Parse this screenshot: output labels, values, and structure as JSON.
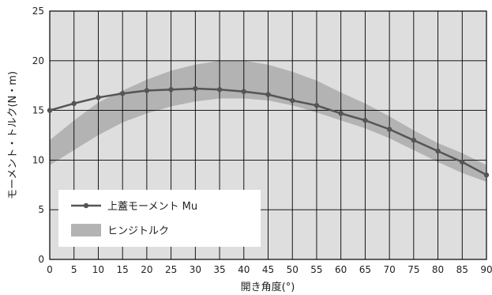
{
  "chart_data": {
    "type": "line",
    "xlabel": "開き角度(°)",
    "ylabel": "モーメント・トルク(N・m)",
    "xlim": [
      0,
      90
    ],
    "ylim": [
      0,
      25
    ],
    "x_ticks": [
      "0",
      "5",
      "10",
      "15",
      "20",
      "25",
      "30",
      "35",
      "40",
      "45",
      "50",
      "55",
      "60",
      "65",
      "70",
      "75",
      "80",
      "85",
      "90"
    ],
    "y_ticks": [
      "0",
      "5",
      "10",
      "15",
      "20",
      "25"
    ],
    "grid": true,
    "legend_position": "bottom-left",
    "series": [
      {
        "name": "上蓋モーメント Mu",
        "type": "line",
        "color": "#555555",
        "x": [
          0,
          5,
          10,
          15,
          20,
          25,
          30,
          35,
          40,
          45,
          50,
          55,
          60,
          65,
          70,
          75,
          80,
          85,
          90
        ],
        "y": [
          15.0,
          15.7,
          16.3,
          16.7,
          17.0,
          17.1,
          17.2,
          17.1,
          16.9,
          16.6,
          16.0,
          15.5,
          14.7,
          14.0,
          13.1,
          12.0,
          10.9,
          9.8,
          8.5
        ]
      },
      {
        "name": "ヒンジトルク",
        "type": "band",
        "color": "#b3b3b3",
        "x": [
          0,
          5,
          10,
          15,
          20,
          25,
          30,
          35,
          40,
          45,
          50,
          55,
          60,
          65,
          70,
          75,
          80,
          85,
          90
        ],
        "upper": [
          12.0,
          14.0,
          15.8,
          17.0,
          18.1,
          19.0,
          19.6,
          20.0,
          20.0,
          19.6,
          18.9,
          18.0,
          16.8,
          15.7,
          14.4,
          13.0,
          11.7,
          10.7,
          9.5
        ],
        "lower": [
          9.5,
          11.0,
          12.5,
          13.8,
          14.7,
          15.4,
          15.9,
          16.2,
          16.2,
          16.0,
          15.5,
          14.8,
          14.0,
          13.2,
          12.2,
          11.0,
          9.8,
          8.7,
          7.8
        ]
      }
    ]
  },
  "legend": {
    "line_label": "上蓋モーメント Mu",
    "band_label": "ヒンジトルク"
  }
}
